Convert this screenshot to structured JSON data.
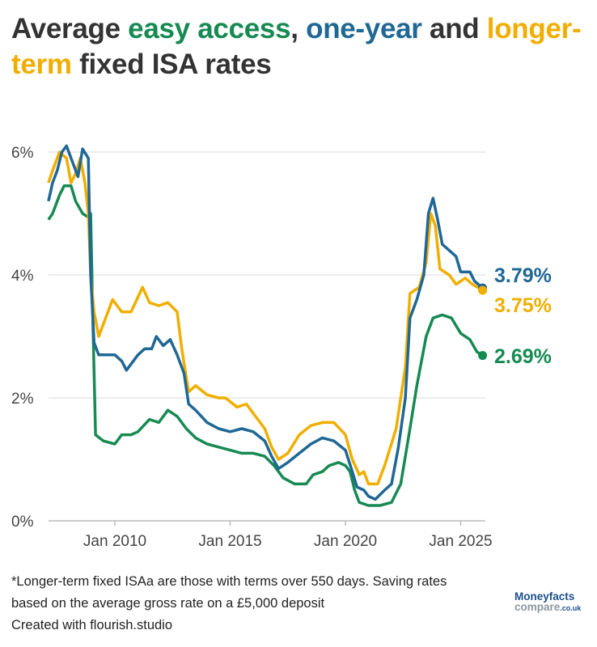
{
  "title": {
    "parts": [
      {
        "text": "Average ",
        "color": "#333333"
      },
      {
        "text": "easy access",
        "color": "#168a52"
      },
      {
        "text": ", ",
        "color": "#333333"
      },
      {
        "text": "one-year",
        "color": "#1f6795"
      },
      {
        "text": " and ",
        "color": "#333333"
      },
      {
        "text": "longer-term",
        "color": "#f0ae00"
      },
      {
        "text": " fixed ISA rates",
        "color": "#333333"
      }
    ]
  },
  "footer": {
    "note1": "*Longer-term fixed ISAa are those with terms over 550 days. Saving rates",
    "note2": "based on the average gross rate on a £5,000 deposit",
    "credit": "Created with flourish.studio"
  },
  "logo": {
    "line1": "Moneyfacts",
    "line2": "compare",
    "line2_suffix": ".co.uk"
  },
  "chart_data": {
    "type": "line",
    "xlim": [
      2007.12,
      2026.0
    ],
    "ylim": [
      0,
      6.5
    ],
    "grid": true,
    "x_ticks": [
      {
        "value": 2010,
        "label": "Jan 2010"
      },
      {
        "value": 2015,
        "label": "Jan 2015"
      },
      {
        "value": 2020,
        "label": "Jan 2020"
      },
      {
        "value": 2025,
        "label": "Jan 2025"
      }
    ],
    "y_ticks": [
      {
        "value": 0,
        "label": "0%"
      },
      {
        "value": 2,
        "label": "2%"
      },
      {
        "value": 4,
        "label": "4%"
      },
      {
        "value": 6,
        "label": "6%"
      }
    ],
    "series": [
      {
        "name": "easy access",
        "color": "#168a52",
        "end_label": "2.69%",
        "points": [
          [
            2007.12,
            4.9
          ],
          [
            2007.3,
            5.0
          ],
          [
            2007.6,
            5.3
          ],
          [
            2007.8,
            5.45
          ],
          [
            2008.1,
            5.45
          ],
          [
            2008.3,
            5.2
          ],
          [
            2008.6,
            5.0
          ],
          [
            2008.8,
            4.95
          ],
          [
            2008.95,
            5.0
          ],
          [
            2009.05,
            3.2
          ],
          [
            2009.16,
            1.4
          ],
          [
            2009.5,
            1.3
          ],
          [
            2010.0,
            1.25
          ],
          [
            2010.3,
            1.4
          ],
          [
            2010.7,
            1.4
          ],
          [
            2011.0,
            1.45
          ],
          [
            2011.5,
            1.65
          ],
          [
            2011.9,
            1.6
          ],
          [
            2012.3,
            1.8
          ],
          [
            2012.7,
            1.7
          ],
          [
            2013.1,
            1.5
          ],
          [
            2013.5,
            1.35
          ],
          [
            2014.0,
            1.25
          ],
          [
            2014.5,
            1.2
          ],
          [
            2015.0,
            1.15
          ],
          [
            2015.5,
            1.1
          ],
          [
            2016.0,
            1.1
          ],
          [
            2016.5,
            1.05
          ],
          [
            2016.9,
            0.9
          ],
          [
            2017.3,
            0.7
          ],
          [
            2017.8,
            0.6
          ],
          [
            2018.3,
            0.6
          ],
          [
            2018.6,
            0.75
          ],
          [
            2019.0,
            0.8
          ],
          [
            2019.3,
            0.9
          ],
          [
            2019.7,
            0.95
          ],
          [
            2020.0,
            0.9
          ],
          [
            2020.2,
            0.8
          ],
          [
            2020.4,
            0.5
          ],
          [
            2020.6,
            0.3
          ],
          [
            2021.0,
            0.25
          ],
          [
            2021.5,
            0.25
          ],
          [
            2022.0,
            0.3
          ],
          [
            2022.4,
            0.6
          ],
          [
            2022.8,
            1.5
          ],
          [
            2023.1,
            2.2
          ],
          [
            2023.5,
            3.0
          ],
          [
            2023.8,
            3.3
          ],
          [
            2024.2,
            3.35
          ],
          [
            2024.6,
            3.3
          ],
          [
            2025.0,
            3.05
          ],
          [
            2025.4,
            2.95
          ],
          [
            2025.7,
            2.75
          ],
          [
            2025.95,
            2.69
          ]
        ]
      },
      {
        "name": "one-year",
        "color": "#1f6795",
        "end_label": "3.79%",
        "points": [
          [
            2007.12,
            5.2
          ],
          [
            2007.3,
            5.5
          ],
          [
            2007.5,
            5.7
          ],
          [
            2007.7,
            6.0
          ],
          [
            2007.9,
            6.1
          ],
          [
            2008.2,
            5.8
          ],
          [
            2008.4,
            5.6
          ],
          [
            2008.6,
            6.05
          ],
          [
            2008.85,
            5.9
          ],
          [
            2008.95,
            4.0
          ],
          [
            2009.1,
            2.9
          ],
          [
            2009.3,
            2.7
          ],
          [
            2009.6,
            2.7
          ],
          [
            2010.0,
            2.7
          ],
          [
            2010.3,
            2.6
          ],
          [
            2010.5,
            2.45
          ],
          [
            2011.0,
            2.7
          ],
          [
            2011.3,
            2.8
          ],
          [
            2011.6,
            2.8
          ],
          [
            2011.8,
            3.0
          ],
          [
            2012.1,
            2.85
          ],
          [
            2012.4,
            2.95
          ],
          [
            2012.7,
            2.7
          ],
          [
            2013.0,
            2.4
          ],
          [
            2013.2,
            1.9
          ],
          [
            2013.5,
            1.8
          ],
          [
            2014.0,
            1.6
          ],
          [
            2014.5,
            1.5
          ],
          [
            2015.0,
            1.45
          ],
          [
            2015.5,
            1.5
          ],
          [
            2016.0,
            1.45
          ],
          [
            2016.5,
            1.3
          ],
          [
            2016.8,
            1.05
          ],
          [
            2017.1,
            0.85
          ],
          [
            2017.5,
            0.95
          ],
          [
            2018.0,
            1.1
          ],
          [
            2018.5,
            1.25
          ],
          [
            2019.0,
            1.35
          ],
          [
            2019.5,
            1.3
          ],
          [
            2020.0,
            1.15
          ],
          [
            2020.3,
            0.8
          ],
          [
            2020.5,
            0.55
          ],
          [
            2020.8,
            0.5
          ],
          [
            2021.0,
            0.4
          ],
          [
            2021.3,
            0.35
          ],
          [
            2021.7,
            0.5
          ],
          [
            2022.0,
            0.6
          ],
          [
            2022.3,
            1.2
          ],
          [
            2022.6,
            2.0
          ],
          [
            2022.8,
            3.3
          ],
          [
            2023.1,
            3.6
          ],
          [
            2023.4,
            4.0
          ],
          [
            2023.6,
            5.0
          ],
          [
            2023.8,
            5.25
          ],
          [
            2024.0,
            4.9
          ],
          [
            2024.2,
            4.5
          ],
          [
            2024.5,
            4.4
          ],
          [
            2024.8,
            4.3
          ],
          [
            2025.0,
            4.05
          ],
          [
            2025.4,
            4.05
          ],
          [
            2025.6,
            3.9
          ],
          [
            2025.95,
            3.79
          ]
        ]
      },
      {
        "name": "longer-term",
        "color": "#f0ae00",
        "end_label": "3.75%",
        "points": [
          [
            2007.12,
            5.5
          ],
          [
            2007.3,
            5.7
          ],
          [
            2007.6,
            6.0
          ],
          [
            2007.9,
            5.9
          ],
          [
            2008.1,
            5.5
          ],
          [
            2008.3,
            5.65
          ],
          [
            2008.5,
            5.9
          ],
          [
            2008.7,
            5.5
          ],
          [
            2008.85,
            5.0
          ],
          [
            2008.95,
            4.0
          ],
          [
            2009.1,
            3.4
          ],
          [
            2009.3,
            3.0
          ],
          [
            2009.6,
            3.3
          ],
          [
            2009.9,
            3.6
          ],
          [
            2010.1,
            3.5
          ],
          [
            2010.3,
            3.4
          ],
          [
            2010.7,
            3.4
          ],
          [
            2011.2,
            3.8
          ],
          [
            2011.5,
            3.55
          ],
          [
            2011.9,
            3.5
          ],
          [
            2012.3,
            3.55
          ],
          [
            2012.7,
            3.4
          ],
          [
            2012.9,
            2.8
          ],
          [
            2013.2,
            2.1
          ],
          [
            2013.5,
            2.2
          ],
          [
            2014.0,
            2.05
          ],
          [
            2014.5,
            2.0
          ],
          [
            2014.8,
            2.0
          ],
          [
            2015.3,
            1.85
          ],
          [
            2015.7,
            1.9
          ],
          [
            2016.0,
            1.75
          ],
          [
            2016.5,
            1.5
          ],
          [
            2016.8,
            1.2
          ],
          [
            2017.1,
            1.0
          ],
          [
            2017.5,
            1.1
          ],
          [
            2018.0,
            1.4
          ],
          [
            2018.5,
            1.55
          ],
          [
            2019.0,
            1.6
          ],
          [
            2019.5,
            1.6
          ],
          [
            2020.0,
            1.4
          ],
          [
            2020.3,
            1.0
          ],
          [
            2020.6,
            0.75
          ],
          [
            2020.8,
            0.8
          ],
          [
            2021.0,
            0.6
          ],
          [
            2021.4,
            0.6
          ],
          [
            2021.7,
            0.9
          ],
          [
            2022.2,
            1.5
          ],
          [
            2022.6,
            2.5
          ],
          [
            2022.8,
            3.7
          ],
          [
            2023.2,
            3.8
          ],
          [
            2023.5,
            4.2
          ],
          [
            2023.7,
            5.0
          ],
          [
            2023.9,
            4.8
          ],
          [
            2024.1,
            4.1
          ],
          [
            2024.5,
            4.0
          ],
          [
            2024.8,
            3.85
          ],
          [
            2025.2,
            3.95
          ],
          [
            2025.5,
            3.85
          ],
          [
            2025.95,
            3.75
          ]
        ]
      }
    ]
  }
}
